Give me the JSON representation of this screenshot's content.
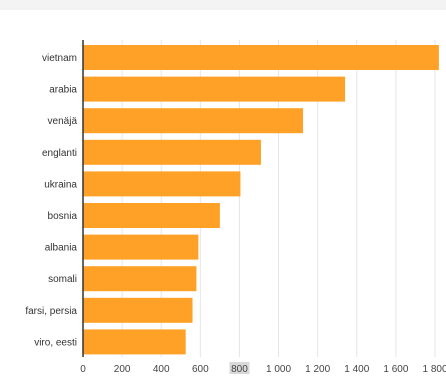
{
  "chart_data": {
    "type": "bar",
    "orientation": "horizontal",
    "categories": [
      "vietnam",
      "arabia",
      "venäjä",
      "englanti",
      "ukraina",
      "bosnia",
      "albania",
      "somali",
      "farsi, persia",
      "viro, eesti"
    ],
    "values": [
      1820,
      1340,
      1125,
      910,
      805,
      700,
      590,
      580,
      560,
      525
    ],
    "xlim": [
      0,
      1800
    ],
    "xticks": [
      0,
      200,
      400,
      600,
      800,
      1000,
      1200,
      1400,
      1600,
      1800
    ],
    "xtick_labels": [
      "0",
      "200",
      "400",
      "600",
      "800",
      "1 000",
      "1 200",
      "1 400",
      "1 600",
      "1 800"
    ],
    "highlighted_tick": "800",
    "grid": true,
    "bar_color": "#ffa126",
    "grid_color": "#e6e6e6",
    "axis_color": "#333333"
  }
}
